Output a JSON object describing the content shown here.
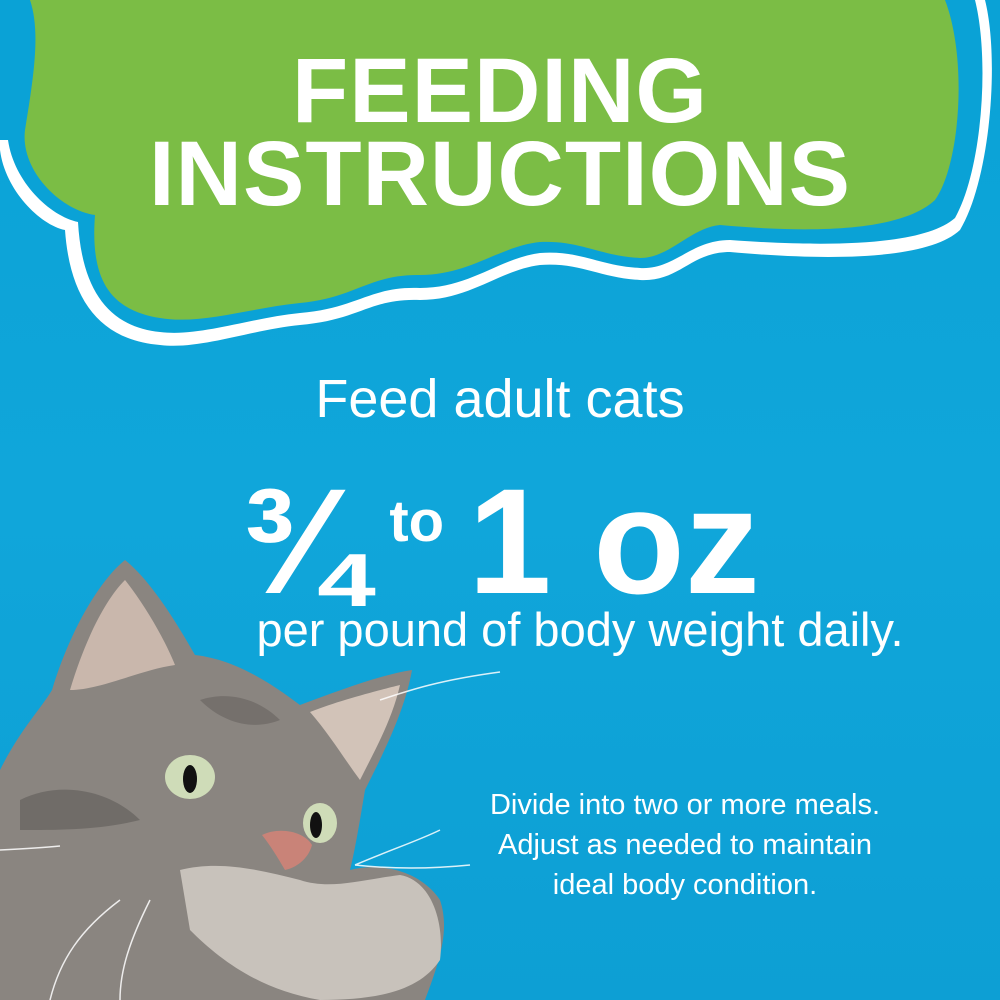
{
  "header": {
    "line1": "FEEDING",
    "line2": "INSTRUCTIONS"
  },
  "main": {
    "intro": "Feed adult cats",
    "amount_fraction": "¾",
    "amount_to": "to",
    "amount_value": "1 oz",
    "per": "per pound of body weight daily.",
    "note_lines": [
      "Divide into two or more meals.",
      "Adjust as needed to maintain",
      "ideal body condition."
    ]
  },
  "colors": {
    "background": "#0aa2d6",
    "cloud": "#7bbd45",
    "text": "#ffffff"
  },
  "image": {
    "subject": "tabby cat"
  }
}
